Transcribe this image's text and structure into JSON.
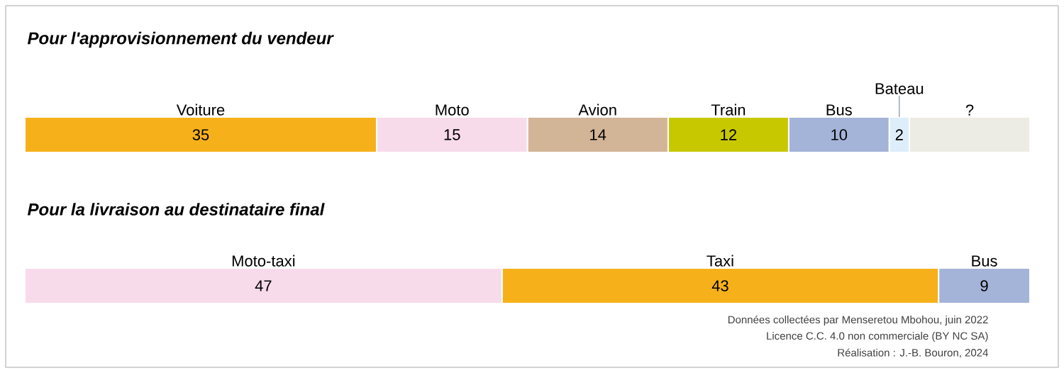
{
  "chart_data": [
    {
      "type": "bar",
      "orientation": "horizontal",
      "stacked": true,
      "title": "Pour l'approvisionnement du vendeur",
      "categories": [
        null
      ],
      "series": [
        {
          "name": "Voiture",
          "color": "#f6b11a",
          "values": [
            35
          ],
          "value_labels": [
            "35"
          ]
        },
        {
          "name": "Moto",
          "color": "#f8dbea",
          "values": [
            15
          ],
          "value_labels": [
            "15"
          ]
        },
        {
          "name": "Avion",
          "color": "#d2b496",
          "values": [
            14
          ],
          "value_labels": [
            "14"
          ]
        },
        {
          "name": "Train",
          "color": "#c8c800",
          "values": [
            12
          ],
          "value_labels": [
            "12"
          ]
        },
        {
          "name": "Bus",
          "color": "#a4b3d8",
          "values": [
            10
          ],
          "value_labels": [
            "10"
          ]
        },
        {
          "name": "Bateau",
          "color": "#ddeefa",
          "values": [
            2
          ],
          "value_labels": [
            "2"
          ]
        },
        {
          "name": "?",
          "color": "#ecebe4",
          "values": [
            12
          ],
          "value_labels": [
            null
          ]
        }
      ]
    },
    {
      "type": "bar",
      "orientation": "horizontal",
      "stacked": true,
      "title": "Pour la livraison au destinataire final",
      "categories": [
        null
      ],
      "series": [
        {
          "name": "Moto-taxi",
          "color": "#f8dbea",
          "values": [
            47
          ],
          "value_labels": [
            "47"
          ]
        },
        {
          "name": "Taxi",
          "color": "#f6b11a",
          "values": [
            43
          ],
          "value_labels": [
            "43"
          ]
        },
        {
          "name": "Bus",
          "color": "#a4b3d8",
          "values": [
            9
          ],
          "value_labels": [
            "9"
          ]
        }
      ],
      "annotations": [
        "Données collectées par Menseretou Mbohou, juin 2022",
        "Licence C.C. 4.0 non commerciale (BY NC SA)",
        "Réalisation : J.-B. Bouron, 2024"
      ]
    }
  ]
}
